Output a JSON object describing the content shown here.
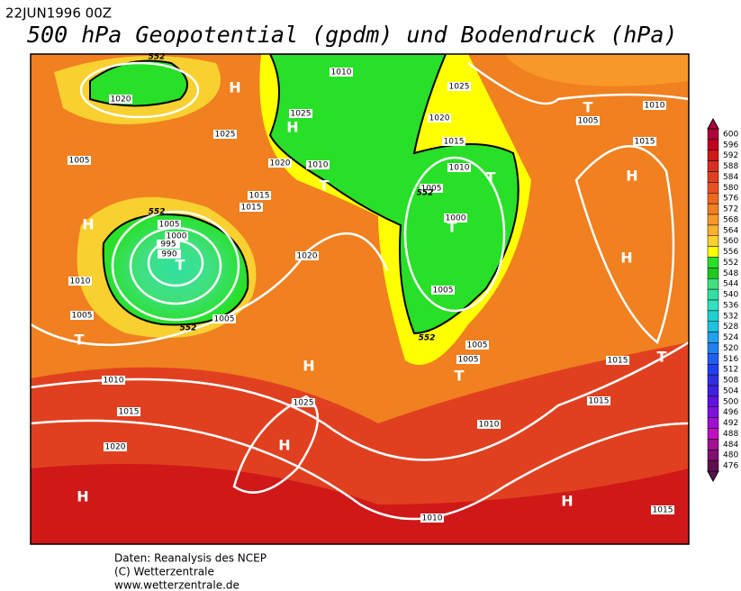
{
  "header": {
    "date": "22JUN1996 00Z",
    "title": "500 hPa Geopotential (gpdm) und Bodendruck (hPa)"
  },
  "legend": {
    "levels": [
      600,
      596,
      592,
      588,
      584,
      580,
      576,
      572,
      568,
      564,
      560,
      556,
      552,
      548,
      544,
      540,
      536,
      532,
      528,
      524,
      520,
      516,
      512,
      508,
      504,
      500,
      496,
      492,
      488,
      484,
      480,
      476
    ],
    "colors": [
      "#b0003a",
      "#c00020",
      "#d01818",
      "#d83020",
      "#e04020",
      "#e85020",
      "#f06820",
      "#f08020",
      "#f89828",
      "#f8b030",
      "#f8d030",
      "#ffff00",
      "#28e028",
      "#20c820",
      "#40e080",
      "#30e0a0",
      "#30e0c0",
      "#20d0d0",
      "#20c0e0",
      "#20a0f0",
      "#2080f0",
      "#2060f0",
      "#2040f0",
      "#3030e0",
      "#4020e0",
      "#6010e0",
      "#8010e0",
      "#a010d0",
      "#c010c0",
      "#a01090",
      "#801070",
      "#601050"
    ]
  },
  "map": {
    "centers": [
      "H",
      "H",
      "T",
      "H",
      "T",
      "T",
      "H",
      "H",
      "H",
      "T",
      "H",
      "T",
      "T",
      "H",
      "T",
      "T",
      "H"
    ],
    "isobar_labels": [
      1020,
      1025,
      1005,
      1025,
      1020,
      1010,
      1015,
      1015,
      1010,
      1025,
      1020,
      1015,
      1010,
      1005,
      1000,
      1005,
      1005,
      1000,
      995,
      990,
      1020,
      1010,
      1005,
      1005,
      1005,
      1005,
      1010,
      1025,
      1015,
      1010,
      1015,
      1015,
      1020,
      1010,
      1015,
      1005,
      1010,
      1015
    ],
    "contour_labels": [
      552,
      552,
      552,
      552,
      552
    ]
  },
  "footer": {
    "lines": [
      "Daten: Reanalysis des NCEP",
      "(C) Wetterzentrale",
      "www.wetterzentrale.de"
    ]
  }
}
